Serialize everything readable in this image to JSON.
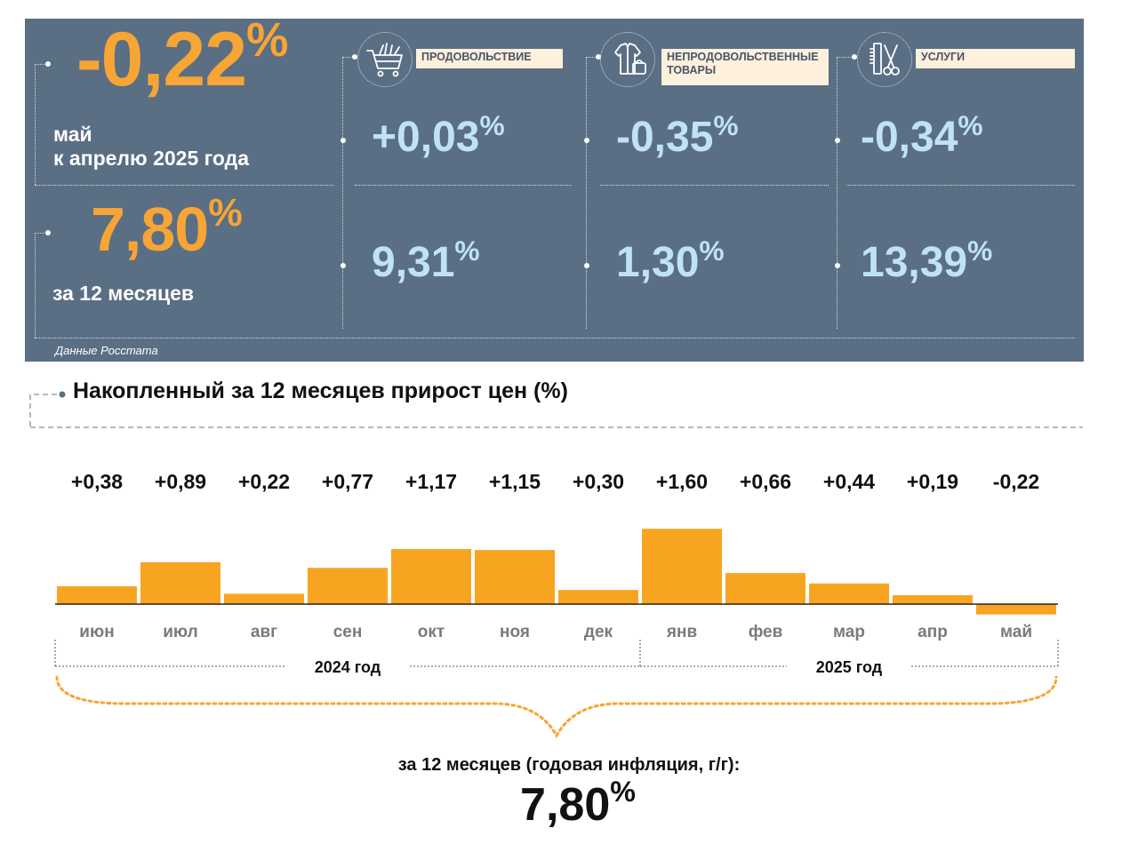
{
  "summary_panel": {
    "month_change": {
      "value": "-0,22",
      "unit": "%",
      "label_line1": "май",
      "label_line2": "к апрелю 2025 года"
    },
    "annual_change": {
      "value": "7,80",
      "unit": "%",
      "label": "за 12 месяцев"
    },
    "categories": [
      {
        "name": "ПРОДОВОЛЬСТВИЕ",
        "icon": "shopping-cart-icon",
        "monthly": "+0,03",
        "annual": "9,31",
        "unit": "%"
      },
      {
        "name_line1": "НЕПРОДОВОЛЬСТВЕННЫЕ",
        "name_line2": "ТОВАРЫ",
        "icon": "jacket-bag-icon",
        "monthly": "-0,35",
        "annual": "1,30",
        "unit": "%"
      },
      {
        "name": "УСЛУГИ",
        "icon": "comb-scissors-icon",
        "monthly": "-0,34",
        "annual": "13,39",
        "unit": "%"
      }
    ],
    "source": "Данные Росстата"
  },
  "chart_title": "Накопленный за 12 месяцев прирост цен (%)",
  "chart_data": {
    "type": "bar",
    "title": "Накопленный за 12 месяцев прирост цен (%)",
    "categories": [
      "июн",
      "июл",
      "авг",
      "сен",
      "окт",
      "ноя",
      "дек",
      "янв",
      "фев",
      "мар",
      "апр",
      "май"
    ],
    "values": [
      0.38,
      0.89,
      0.22,
      0.77,
      1.17,
      1.15,
      0.3,
      1.6,
      0.66,
      0.44,
      0.19,
      -0.22
    ],
    "data_labels": [
      "+0,38",
      "+0,89",
      "+0,22",
      "+0,77",
      "+1,17",
      "+1,15",
      "+0,30",
      "+1,60",
      "+0,66",
      "+0,44",
      "+0,19",
      "-0,22"
    ],
    "year_groups": [
      {
        "label": "2024 год",
        "months": 7
      },
      {
        "label": "2025 год",
        "months": 5
      }
    ],
    "bar_color": "#f7a521",
    "grid": false
  },
  "summary": {
    "label": "за 12 месяцев (годовая инфляция, г/г):",
    "value": "7,80",
    "unit": "%"
  },
  "colors": {
    "panel_bg": "#5a6e84",
    "accent_orange": "#f7a535",
    "value_blue": "#bfe3f5",
    "label_bg": "#fdf0dc"
  }
}
